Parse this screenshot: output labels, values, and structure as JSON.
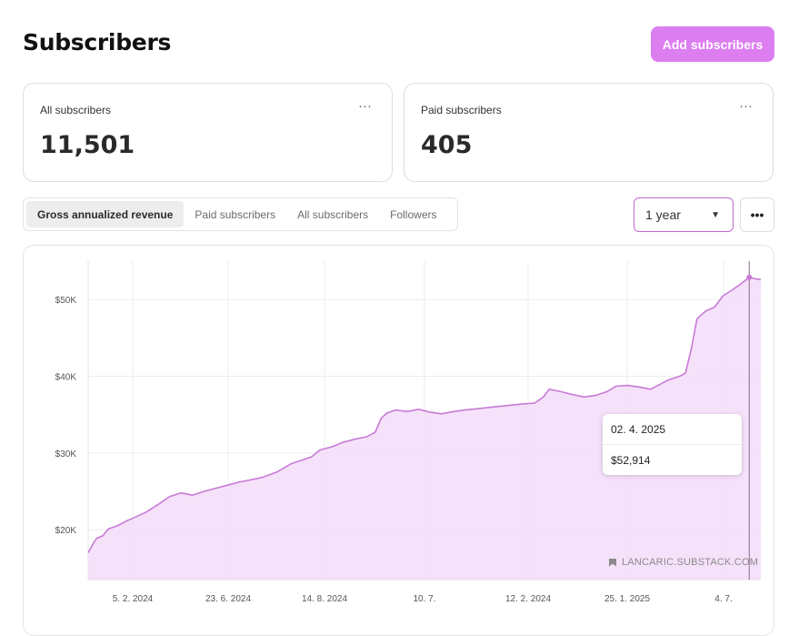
{
  "header": {
    "title": "Subscribers",
    "add_button_label": "Add subscribers"
  },
  "stats": [
    {
      "label": "All subscribers",
      "value": "11,501",
      "menu_icon": "more-horizontal-icon"
    },
    {
      "label": "Paid subscribers",
      "value": "405",
      "menu_icon": "more-horizontal-icon"
    }
  ],
  "tabs": [
    {
      "label": "Gross annualized revenue",
      "active": true
    },
    {
      "label": "Paid subscribers",
      "active": false
    },
    {
      "label": "All subscribers",
      "active": false
    },
    {
      "label": "Followers",
      "active": false
    }
  ],
  "range_select": {
    "value": "1 year",
    "icon": "caret-down-icon"
  },
  "tooltip": {
    "date": "02. 4. 2025",
    "value": "$52,914"
  },
  "watermark": {
    "text": "LANCARIC.SUBSTACK.COM",
    "icon": "bookmark-icon"
  },
  "colors": {
    "accent": "#dc7ef0",
    "line": "#c77ad6",
    "fill": "#f4dcf9"
  },
  "chart_data": {
    "type": "area",
    "series": [
      {
        "values": [
          [
            0,
            17000
          ],
          [
            2,
            18400
          ],
          [
            3,
            18900
          ],
          [
            5,
            19200
          ],
          [
            7,
            20100
          ],
          [
            10,
            20500
          ],
          [
            13,
            21100
          ],
          [
            16,
            21600
          ],
          [
            20,
            22300
          ],
          [
            25,
            23500
          ],
          [
            28,
            24300
          ],
          [
            32,
            24800
          ],
          [
            36,
            24500
          ],
          [
            40,
            25000
          ],
          [
            44,
            25400
          ],
          [
            48,
            25800
          ],
          [
            52,
            26200
          ],
          [
            56,
            26500
          ],
          [
            60,
            26800
          ],
          [
            65,
            27500
          ],
          [
            70,
            28600
          ],
          [
            74,
            29100
          ],
          [
            77,
            29500
          ],
          [
            80,
            30400
          ],
          [
            84,
            30800
          ],
          [
            88,
            31400
          ],
          [
            92,
            31800
          ],
          [
            96,
            32100
          ],
          [
            99,
            32700
          ],
          [
            101,
            34500
          ],
          [
            103,
            35200
          ],
          [
            106,
            35600
          ],
          [
            110,
            35400
          ],
          [
            114,
            35700
          ],
          [
            118,
            35300
          ],
          [
            122,
            35100
          ],
          [
            126,
            35400
          ],
          [
            130,
            35600
          ],
          [
            135,
            35800
          ],
          [
            140,
            36000
          ],
          [
            145,
            36200
          ],
          [
            150,
            36400
          ],
          [
            154,
            36500
          ],
          [
            157,
            37300
          ],
          [
            159,
            38300
          ],
          [
            163,
            38000
          ],
          [
            167,
            37600
          ],
          [
            171,
            37300
          ],
          [
            175,
            37500
          ],
          [
            179,
            38000
          ],
          [
            182,
            38700
          ],
          [
            186,
            38800
          ],
          [
            190,
            38600
          ],
          [
            194,
            38300
          ],
          [
            197,
            38900
          ],
          [
            200,
            39500
          ],
          [
            204,
            40000
          ],
          [
            206,
            40400
          ],
          [
            208,
            43500
          ],
          [
            210,
            47500
          ],
          [
            213,
            48500
          ],
          [
            216,
            49000
          ],
          [
            219,
            50500
          ],
          [
            222,
            51200
          ],
          [
            225,
            52000
          ],
          [
            228,
            52900
          ],
          [
            230,
            52700
          ],
          [
            232,
            52600
          ]
        ]
      }
    ],
    "x_ticks": [
      "5. 2. 2024",
      "23. 6. 2024",
      "14. 8. 2024",
      "10. 7.",
      "12. 2. 2024",
      "25. 1. 2025",
      "4. 7."
    ],
    "y_ticks": [
      "$20K",
      "$30K",
      "$40K",
      "$50K"
    ],
    "y_tick_values": [
      20000,
      30000,
      40000,
      50000
    ],
    "ylim": [
      13500,
      55000
    ],
    "xlim": [
      0,
      232
    ],
    "grid": true,
    "cursor_x": 228
  }
}
